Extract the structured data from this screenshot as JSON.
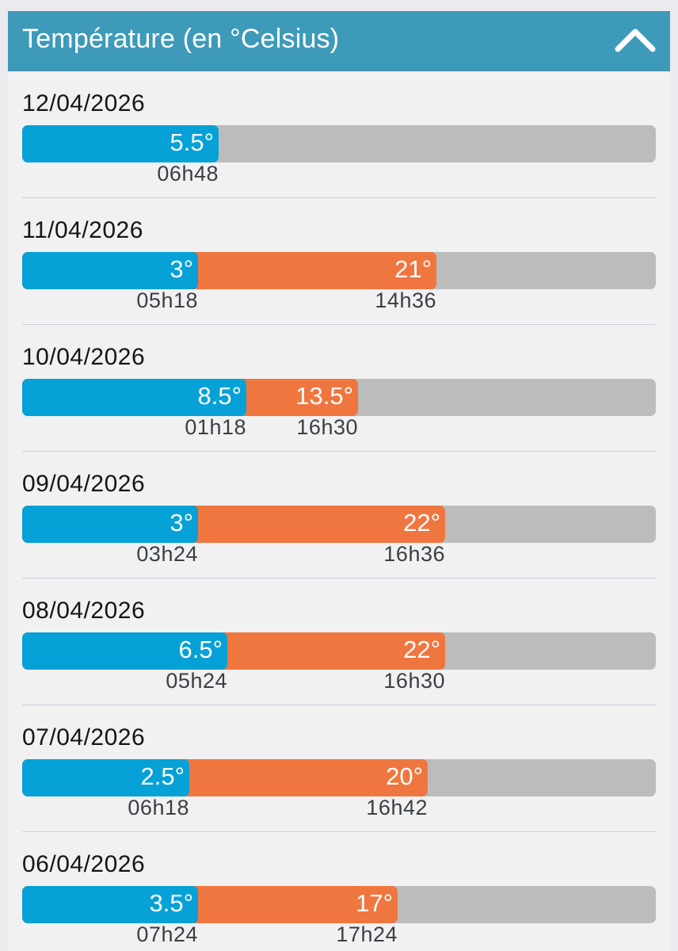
{
  "header": {
    "title": "Température (en °Celsius)",
    "collapse_icon": "chevron-up-icon"
  },
  "colors": {
    "header_bg": "#3e9ab9",
    "min_bar": "#06a1d6",
    "max_bar": "#f07640",
    "track": "#bcbcbc"
  },
  "days": [
    {
      "date": "12/04/2026",
      "min_label": "5.5°",
      "min_time": "06h48",
      "min_fill": 0.31,
      "max_label": "",
      "max_time": "",
      "max_fill": 0
    },
    {
      "date": "11/04/2026",
      "min_label": "3°",
      "min_time": "05h18",
      "min_fill": 0.278,
      "max_label": "21°",
      "max_time": "14h36",
      "max_fill": 0.654
    },
    {
      "date": "10/04/2026",
      "min_label": "8.5°",
      "min_time": "01h18",
      "min_fill": 0.354,
      "max_label": "13.5°",
      "max_time": "16h30",
      "max_fill": 0.53
    },
    {
      "date": "09/04/2026",
      "min_label": "3°",
      "min_time": "03h24",
      "min_fill": 0.278,
      "max_label": "22°",
      "max_time": "16h36",
      "max_fill": 0.668
    },
    {
      "date": "08/04/2026",
      "min_label": "6.5°",
      "min_time": "05h24",
      "min_fill": 0.324,
      "max_label": "22°",
      "max_time": "16h30",
      "max_fill": 0.668
    },
    {
      "date": "07/04/2026",
      "min_label": "2.5°",
      "min_time": "06h18",
      "min_fill": 0.264,
      "max_label": "20°",
      "max_time": "16h42",
      "max_fill": 0.64
    },
    {
      "date": "06/04/2026",
      "min_label": "3.5°",
      "min_time": "07h24",
      "min_fill": 0.278,
      "max_label": "17°",
      "max_time": "17h24",
      "max_fill": 0.593
    }
  ]
}
